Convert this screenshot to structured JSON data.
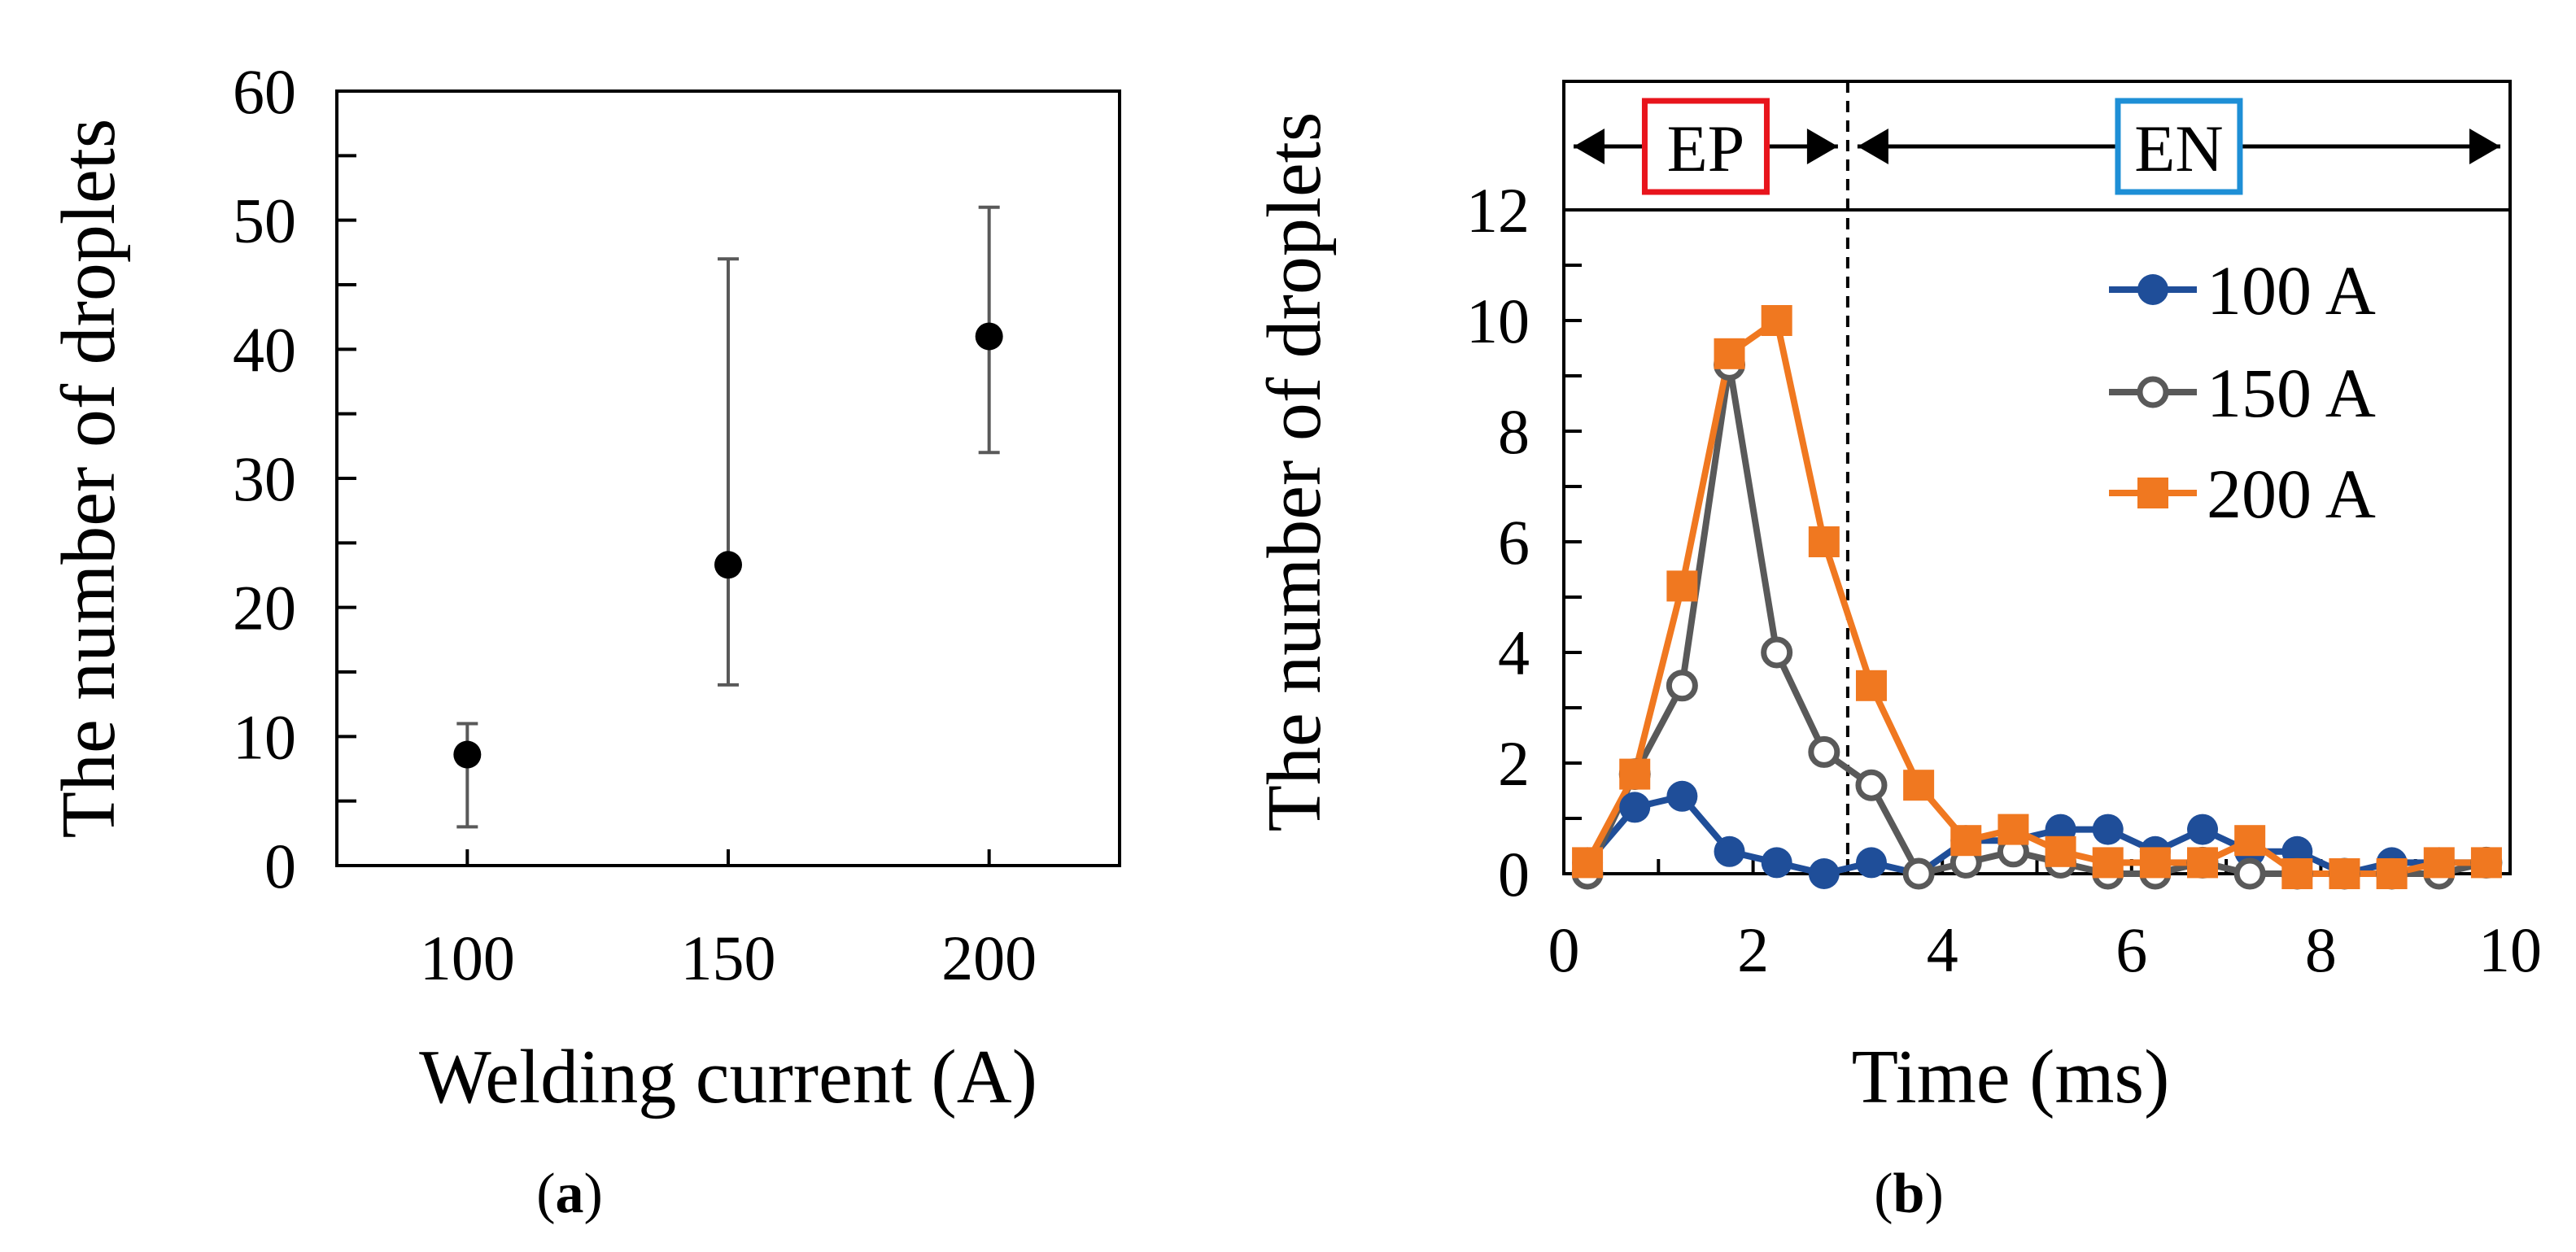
{
  "chart_data": [
    {
      "type": "scatter",
      "panel_label": "(a)",
      "panel_letter": "a",
      "xlabel": "Welding current (A)",
      "ylabel": "The number of droplets",
      "categories": [
        "100",
        "150",
        "200"
      ],
      "x": [
        100,
        150,
        200
      ],
      "values": [
        8.6,
        23.3,
        41.0
      ],
      "error_low": [
        3,
        14,
        32
      ],
      "error_high": [
        11,
        47,
        51
      ],
      "xlim": [
        75,
        225
      ],
      "ylim": [
        0,
        60
      ],
      "yticks": [
        0,
        10,
        20,
        30,
        40,
        50,
        60
      ],
      "grid": false,
      "marker_color": "#000000",
      "errorbar_color": "#595959"
    },
    {
      "type": "line",
      "panel_label": "(b)",
      "panel_letter": "b",
      "xlabel": "Time (ms)",
      "ylabel": "The number of droplets",
      "xlim": [
        0,
        10
      ],
      "ylim": [
        0,
        12
      ],
      "xticks": [
        0,
        2,
        4,
        6,
        8,
        10
      ],
      "yticks": [
        0,
        2,
        4,
        6,
        8,
        10,
        12
      ],
      "grid": false,
      "legend_position": "top-right",
      "phase_boundary": 3,
      "phases": [
        {
          "label": "EP",
          "start": 0,
          "end": 3,
          "color": "#e8141c"
        },
        {
          "label": "EN",
          "start": 3,
          "end": 10,
          "color": "#1e8fd6"
        }
      ],
      "x": [
        0.25,
        0.75,
        1.25,
        1.75,
        2.25,
        2.75,
        3.25,
        3.75,
        4.25,
        4.75,
        5.25,
        5.75,
        6.25,
        6.75,
        7.25,
        7.75,
        8.25,
        8.75,
        9.25,
        9.75
      ],
      "series": [
        {
          "name": "100 A",
          "color": "#1f4e99",
          "marker": "filled-circle",
          "values": [
            0.2,
            1.2,
            1.4,
            0.4,
            0.2,
            0.0,
            0.2,
            0.0,
            0.6,
            0.6,
            0.8,
            0.8,
            0.4,
            0.8,
            0.4,
            0.4,
            0.0,
            0.2,
            0.2,
            0.2
          ]
        },
        {
          "name": "150 A",
          "color": "#595959",
          "marker": "open-circle",
          "values": [
            0.0,
            1.8,
            3.4,
            9.2,
            4.0,
            2.2,
            1.6,
            0.0,
            0.2,
            0.4,
            0.2,
            0.0,
            0.0,
            0.2,
            0.0,
            0.0,
            0.0,
            0.0,
            0.0,
            0.2
          ]
        },
        {
          "name": "200 A",
          "color": "#f07820",
          "marker": "square",
          "values": [
            0.2,
            1.8,
            5.2,
            9.4,
            10.0,
            6.0,
            3.4,
            1.6,
            0.6,
            0.8,
            0.4,
            0.2,
            0.2,
            0.2,
            0.6,
            0.0,
            0.0,
            0.0,
            0.2,
            0.2
          ]
        }
      ]
    }
  ]
}
